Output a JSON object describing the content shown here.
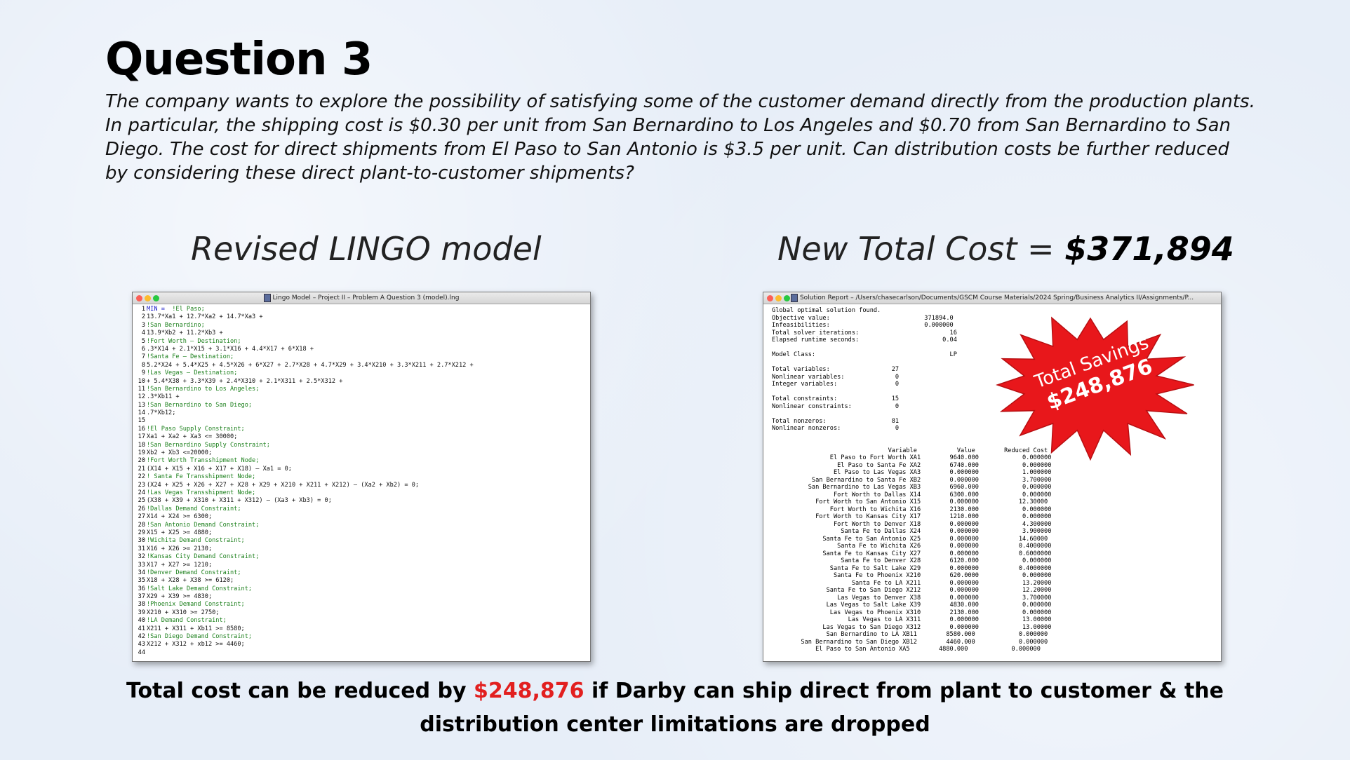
{
  "slide": {
    "title": "Question 3",
    "question": "The company wants to explore the possibility of satisfying some of the customer demand directly from the production plants. In particular, the shipping cost is $0.30 per unit from San Bernardino to Los Angeles and $0.70 from San Bernardino to San Diego. The cost for direct shipments from El Paso to San Antonio is $3.5 per unit. Can distribution costs be further reduced by considering these direct plant-to-customer shipments?",
    "left_heading": "Revised LINGO model",
    "right_heading_prefix": "New Total Cost = ",
    "right_heading_value": "$371,894",
    "badge_line1": "Total Savings",
    "badge_line2": "$248,876",
    "conclusion_prefix": "Total cost can be reduced by ",
    "conclusion_value": "$248,876",
    "conclusion_suffix": " if Darby can ship direct from plant to customer & the distribution center limitations are dropped",
    "badge_color": "#e8171b"
  },
  "lingo_window": {
    "title": "Lingo Model – Project II – Problem A Question 3 (model).lng",
    "lines": [
      {
        "n": "1",
        "text": "MIN =  !El Paso;",
        "style": "mixed"
      },
      {
        "n": "2",
        "text": "13.7*Xa1 + 12.7*Xa2 + 14.7*Xa3 +",
        "style": ""
      },
      {
        "n": "3",
        "text": "!San Bernardino;",
        "style": "cm"
      },
      {
        "n": "4",
        "text": "13.9*Xb2 + 11.2*Xb3 +",
        "style": ""
      },
      {
        "n": "5",
        "text": "!Fort Worth – Destination;",
        "style": "cm"
      },
      {
        "n": "6",
        "text": ".3*X14 + 2.1*X15 + 3.1*X16 + 4.4*X17 + 6*X18 +",
        "style": ""
      },
      {
        "n": "7",
        "text": "!Santa Fe – Destination;",
        "style": "cm"
      },
      {
        "n": "8",
        "text": "5.2*X24 + 5.4*X25 + 4.5*X26 + 6*X27 + 2.7*X28 + 4.7*X29 + 3.4*X210 + 3.3*X211 + 2.7*X212 +",
        "style": ""
      },
      {
        "n": "9",
        "text": "!Las Vegas – Destination;",
        "style": "cm"
      },
      {
        "n": "10",
        "text": "+ 5.4*X38 + 3.3*X39 + 2.4*X310 + 2.1*X311 + 2.5*X312 +",
        "style": ""
      },
      {
        "n": "11",
        "text": "!San Bernardino to Los Angeles;",
        "style": "cm"
      },
      {
        "n": "12",
        "text": ".3*Xb11 +",
        "style": ""
      },
      {
        "n": "13",
        "text": "!San Bernardino to San Diego;",
        "style": "cm"
      },
      {
        "n": "14",
        "text": ".7*Xb12;",
        "style": ""
      },
      {
        "n": "15",
        "text": "",
        "style": ""
      },
      {
        "n": "16",
        "text": "!El Paso Supply Constraint;",
        "style": "cm"
      },
      {
        "n": "17",
        "text": "Xa1 + Xa2 + Xa3 <= 30000;",
        "style": ""
      },
      {
        "n": "18",
        "text": "!San Bernardino Supply Constraint;",
        "style": "cm"
      },
      {
        "n": "19",
        "text": "Xb2 + Xb3 <=20000;",
        "style": ""
      },
      {
        "n": "20",
        "text": "!Fort Worth Transshipment Node;",
        "style": "cm"
      },
      {
        "n": "21",
        "text": "(X14 + X15 + X16 + X17 + X18) – Xa1 = 0;",
        "style": ""
      },
      {
        "n": "22",
        "text": "! Santa Fe Transshipment Node;",
        "style": "cm"
      },
      {
        "n": "23",
        "text": "(X24 + X25 + X26 + X27 + X28 + X29 + X210 + X211 + X212) – (Xa2 + Xb2) = 0;",
        "style": ""
      },
      {
        "n": "24",
        "text": "!Las Vegas Transshipment Node;",
        "style": "cm"
      },
      {
        "n": "25",
        "text": "(X38 + X39 + X310 + X311 + X312) – (Xa3 + Xb3) = 0;",
        "style": ""
      },
      {
        "n": "26",
        "text": "!Dallas Demand Constraint;",
        "style": "cm"
      },
      {
        "n": "27",
        "text": "X14 + X24 >= 6300;",
        "style": ""
      },
      {
        "n": "28",
        "text": "!San Antonio Demand Constraint;",
        "style": "cm"
      },
      {
        "n": "29",
        "text": "X15 + X25 >= 4880;",
        "style": ""
      },
      {
        "n": "30",
        "text": "!Wichita Demand Constraint;",
        "style": "cm"
      },
      {
        "n": "31",
        "text": "X16 + X26 >= 2130;",
        "style": ""
      },
      {
        "n": "32",
        "text": "!Kansas City Demand Constraint;",
        "style": "cm"
      },
      {
        "n": "33",
        "text": "X17 + X27 >= 1210;",
        "style": ""
      },
      {
        "n": "34",
        "text": "!Denver Demand Constraint;",
        "style": "cm"
      },
      {
        "n": "35",
        "text": "X18 + X28 + X38 >= 6120;",
        "style": ""
      },
      {
        "n": "36",
        "text": "!Salt Lake Demand Constraint;",
        "style": "cm"
      },
      {
        "n": "37",
        "text": "X29 + X39 >= 4830;",
        "style": ""
      },
      {
        "n": "38",
        "text": "!Phoenix Demand Constraint;",
        "style": "cm"
      },
      {
        "n": "39",
        "text": "X210 + X310 >= 2750;",
        "style": ""
      },
      {
        "n": "40",
        "text": "!LA Demand Constraint;",
        "style": "cm"
      },
      {
        "n": "41",
        "text": "X211 + X311 + Xb11 >= 8580;",
        "style": ""
      },
      {
        "n": "42",
        "text": "!San Diego Demand Constraint;",
        "style": "cm"
      },
      {
        "n": "43",
        "text": "X212 + X312 + xb12 >= 4460;",
        "style": ""
      },
      {
        "n": "44",
        "text": "",
        "style": ""
      }
    ]
  },
  "solution_window": {
    "title": "Solution Report – /Users/chasecarlson/Documents/GSCM Course Materials/2024 Spring/Business Analytics II/Assignments/P...",
    "header_lines": [
      "Global optimal solution found.",
      "Objective value:                          371894.0",
      "Infeasibilities:                          0.000000",
      "Total solver iterations:                         16",
      "Elapsed runtime seconds:                       0.04",
      "",
      "Model Class:                                     LP",
      "",
      "Total variables:                 27",
      "Nonlinear variables:              0",
      "Integer variables:                0",
      "",
      "Total constraints:               15",
      "Nonlinear constraints:            0",
      "",
      "Total nonzeros:                  81",
      "Nonlinear nonzeros:               0",
      "",
      ""
    ],
    "column_header": "                                Variable           Value        Reduced Cost",
    "rows": [
      "                El Paso to Fort Worth XA1        9640.000            0.000000",
      "                  El Paso to Santa Fe XA2        6740.000            0.000000",
      "                 El Paso to Las Vegas XA3        0.000000            1.000000",
      "           San Bernardino to Santa Fe XB2        0.000000            3.700000",
      "          San Bernardino to Las Vegas XB3        6960.000            0.000000",
      "                 Fort Worth to Dallas X14        6300.000            0.000000",
      "            Fort Worth to San Antonio X15        0.000000           12.30000",
      "                Fort Worth to Wichita X16        2130.000            0.000000",
      "            Fort Worth to Kansas City X17        1210.000            0.000000",
      "                 Fort Worth to Denver X18        0.000000            4.300000",
      "                   Santa Fe to Dallas X24        0.000000            3.900000",
      "              Santa Fe to San Antonio X25        0.000000           14.60000",
      "                  Santa Fe to Wichita X26        0.000000           0.4000000",
      "              Santa Fe to Kansas City X27        0.000000           0.6000000",
      "                   Santa Fe to Denver X28        6120.000            0.000000",
      "                Santa Fe to Salt Lake X29        0.000000           0.4000000",
      "                 Santa Fe to Phoenix X210        620.0000            0.000000",
      "                      Santa Fe to LA X211        0.000000            13.20000",
      "               Santa Fe to San Diego X212        0.000000            12.20000",
      "                  Las Vegas to Denver X38        0.000000            3.700000",
      "               Las Vegas to Salt Lake X39        4830.000            0.000000",
      "                Las Vegas to Phoenix X310        2130.000            0.000000",
      "                     Las Vegas to LA X311        0.000000            13.00000",
      "              Las Vegas to San Diego X312        0.000000            13.00000",
      "               San Bernardino to LA XB11        8580.000            0.000000",
      "        San Bernardino to San Diego XB12        4460.000            0.000000",
      "            El Paso to San Antonio XA5        4880.000            0.000000"
    ]
  }
}
